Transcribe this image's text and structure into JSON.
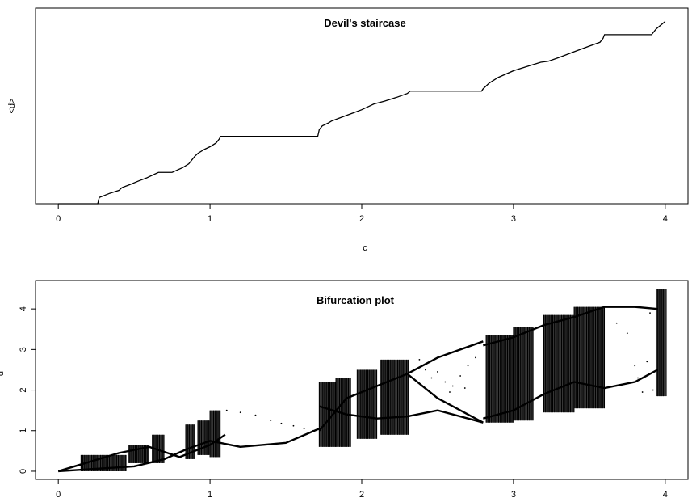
{
  "chart_data": [
    {
      "type": "line",
      "title": "Devil's staircase",
      "xlabel": "c",
      "ylabel": "<d>",
      "xlim": [
        -0.15,
        4.15
      ],
      "ylim": [
        0,
        1.03
      ],
      "xticks": [
        "0",
        "1",
        "2",
        "3",
        "4"
      ],
      "grid": false,
      "series": [
        {
          "x": [
            0.0,
            0.26,
            0.27,
            0.34,
            0.4,
            0.42,
            0.47,
            0.53,
            0.58,
            0.62,
            0.66,
            0.75,
            0.82,
            0.86,
            0.88,
            0.9,
            0.92,
            0.96,
            1.0,
            1.04,
            1.06,
            1.07,
            1.71,
            1.72,
            1.74,
            1.78,
            1.8,
            1.85,
            1.9,
            1.95,
            2.0,
            2.04,
            2.08,
            2.15,
            2.23,
            2.3,
            2.32,
            2.79,
            2.8,
            2.84,
            2.9,
            3.0,
            3.1,
            3.18,
            3.23,
            3.3,
            3.4,
            3.5,
            3.57,
            3.59,
            3.6,
            3.91,
            3.94,
            4.0
          ],
          "y": [
            0.0,
            0.0,
            0.033,
            0.055,
            0.07,
            0.085,
            0.1,
            0.12,
            0.135,
            0.15,
            0.165,
            0.165,
            0.19,
            0.21,
            0.23,
            0.25,
            0.265,
            0.285,
            0.3,
            0.32,
            0.34,
            0.355,
            0.355,
            0.39,
            0.41,
            0.425,
            0.435,
            0.45,
            0.465,
            0.48,
            0.495,
            0.51,
            0.525,
            0.54,
            0.56,
            0.58,
            0.593,
            0.593,
            0.605,
            0.635,
            0.665,
            0.7,
            0.725,
            0.745,
            0.75,
            0.77,
            0.8,
            0.83,
            0.85,
            0.87,
            0.89,
            0.89,
            0.92,
            0.96
          ]
        }
      ]
    },
    {
      "type": "scatter",
      "title": "Bifurcation plot",
      "xlabel": "",
      "ylabel": "d",
      "xlim": [
        -0.15,
        4.15
      ],
      "ylim": [
        -0.2,
        4.7
      ],
      "xticks": [
        "0",
        "1",
        "2",
        "3",
        "4"
      ],
      "yticks": [
        "0",
        "1",
        "2",
        "3",
        "4"
      ],
      "grid": false,
      "bands": [
        {
          "x0": 0.15,
          "x1": 0.45,
          "y0": 0.0,
          "y1": 0.4
        },
        {
          "x0": 0.46,
          "x1": 0.6,
          "y0": 0.2,
          "y1": 0.65
        },
        {
          "x0": 0.62,
          "x1": 0.7,
          "y0": 0.2,
          "y1": 0.9
        },
        {
          "x0": 0.84,
          "x1": 0.9,
          "y0": 0.3,
          "y1": 1.15
        },
        {
          "x0": 0.92,
          "x1": 1.0,
          "y0": 0.4,
          "y1": 1.25
        },
        {
          "x0": 1.0,
          "x1": 1.07,
          "y0": 0.35,
          "y1": 1.5
        },
        {
          "x0": 1.72,
          "x1": 1.83,
          "y0": 0.6,
          "y1": 2.2
        },
        {
          "x0": 1.83,
          "x1": 1.93,
          "y0": 0.6,
          "y1": 2.3
        },
        {
          "x0": 1.97,
          "x1": 2.1,
          "y0": 0.8,
          "y1": 2.5
        },
        {
          "x0": 2.12,
          "x1": 2.31,
          "y0": 0.9,
          "y1": 2.75
        },
        {
          "x0": 2.82,
          "x1": 3.0,
          "y0": 1.2,
          "y1": 3.35
        },
        {
          "x0": 3.0,
          "x1": 3.13,
          "y0": 1.25,
          "y1": 3.55
        },
        {
          "x0": 3.2,
          "x1": 3.4,
          "y0": 1.45,
          "y1": 3.85
        },
        {
          "x0": 3.4,
          "x1": 3.6,
          "y0": 1.55,
          "y1": 4.05
        },
        {
          "x0": 3.94,
          "x1": 4.01,
          "y0": 1.85,
          "y1": 4.5
        }
      ],
      "curves": [
        {
          "x": [
            0.0,
            0.5,
            0.7,
            0.85,
            1.0,
            1.2,
            1.5,
            1.72
          ],
          "y": [
            0.0,
            0.12,
            0.3,
            0.55,
            0.75,
            0.6,
            0.7,
            1.05
          ]
        },
        {
          "x": [
            0.0,
            0.4,
            0.6,
            0.8,
            1.0,
            1.1
          ],
          "y": [
            0.0,
            0.45,
            0.6,
            0.35,
            0.65,
            0.9
          ]
        },
        {
          "x": [
            1.72,
            1.9,
            2.1,
            2.3,
            2.5,
            2.8
          ],
          "y": [
            1.0,
            1.8,
            2.1,
            2.4,
            2.8,
            3.2
          ]
        },
        {
          "x": [
            1.72,
            1.9,
            2.1,
            2.3,
            2.5,
            2.8
          ],
          "y": [
            1.6,
            1.4,
            1.3,
            1.35,
            1.5,
            1.2
          ]
        },
        {
          "x": [
            2.3,
            2.5,
            2.7,
            2.8
          ],
          "y": [
            2.4,
            1.8,
            1.4,
            1.2
          ]
        },
        {
          "x": [
            2.8,
            3.0,
            3.2,
            3.4,
            3.6,
            3.8,
            3.95
          ],
          "y": [
            3.1,
            3.3,
            3.6,
            3.8,
            4.05,
            4.05,
            4.0
          ]
        },
        {
          "x": [
            2.8,
            3.0,
            3.2,
            3.4,
            3.6,
            3.8,
            3.95
          ],
          "y": [
            1.3,
            1.5,
            1.9,
            2.2,
            2.05,
            2.2,
            2.5
          ]
        }
      ],
      "scatter_points": [
        {
          "x": 1.11,
          "y": 1.5
        },
        {
          "x": 1.2,
          "y": 1.45
        },
        {
          "x": 1.3,
          "y": 1.38
        },
        {
          "x": 1.4,
          "y": 1.25
        },
        {
          "x": 1.47,
          "y": 1.18
        },
        {
          "x": 1.55,
          "y": 1.12
        },
        {
          "x": 1.62,
          "y": 1.05
        },
        {
          "x": 1.68,
          "y": 1.0
        },
        {
          "x": 2.38,
          "y": 2.75
        },
        {
          "x": 2.42,
          "y": 2.5
        },
        {
          "x": 2.46,
          "y": 2.3
        },
        {
          "x": 2.5,
          "y": 2.45
        },
        {
          "x": 2.55,
          "y": 2.2
        },
        {
          "x": 2.6,
          "y": 2.1
        },
        {
          "x": 2.65,
          "y": 2.35
        },
        {
          "x": 2.7,
          "y": 2.6
        },
        {
          "x": 2.75,
          "y": 2.8
        },
        {
          "x": 2.48,
          "y": 1.85
        },
        {
          "x": 2.58,
          "y": 1.95
        },
        {
          "x": 2.68,
          "y": 2.05
        },
        {
          "x": 3.68,
          "y": 3.65
        },
        {
          "x": 3.75,
          "y": 3.4
        },
        {
          "x": 3.8,
          "y": 2.6
        },
        {
          "x": 3.82,
          "y": 2.3
        },
        {
          "x": 3.85,
          "y": 1.95
        },
        {
          "x": 3.88,
          "y": 2.7
        },
        {
          "x": 3.9,
          "y": 3.9
        },
        {
          "x": 3.92,
          "y": 2.0
        }
      ]
    }
  ]
}
